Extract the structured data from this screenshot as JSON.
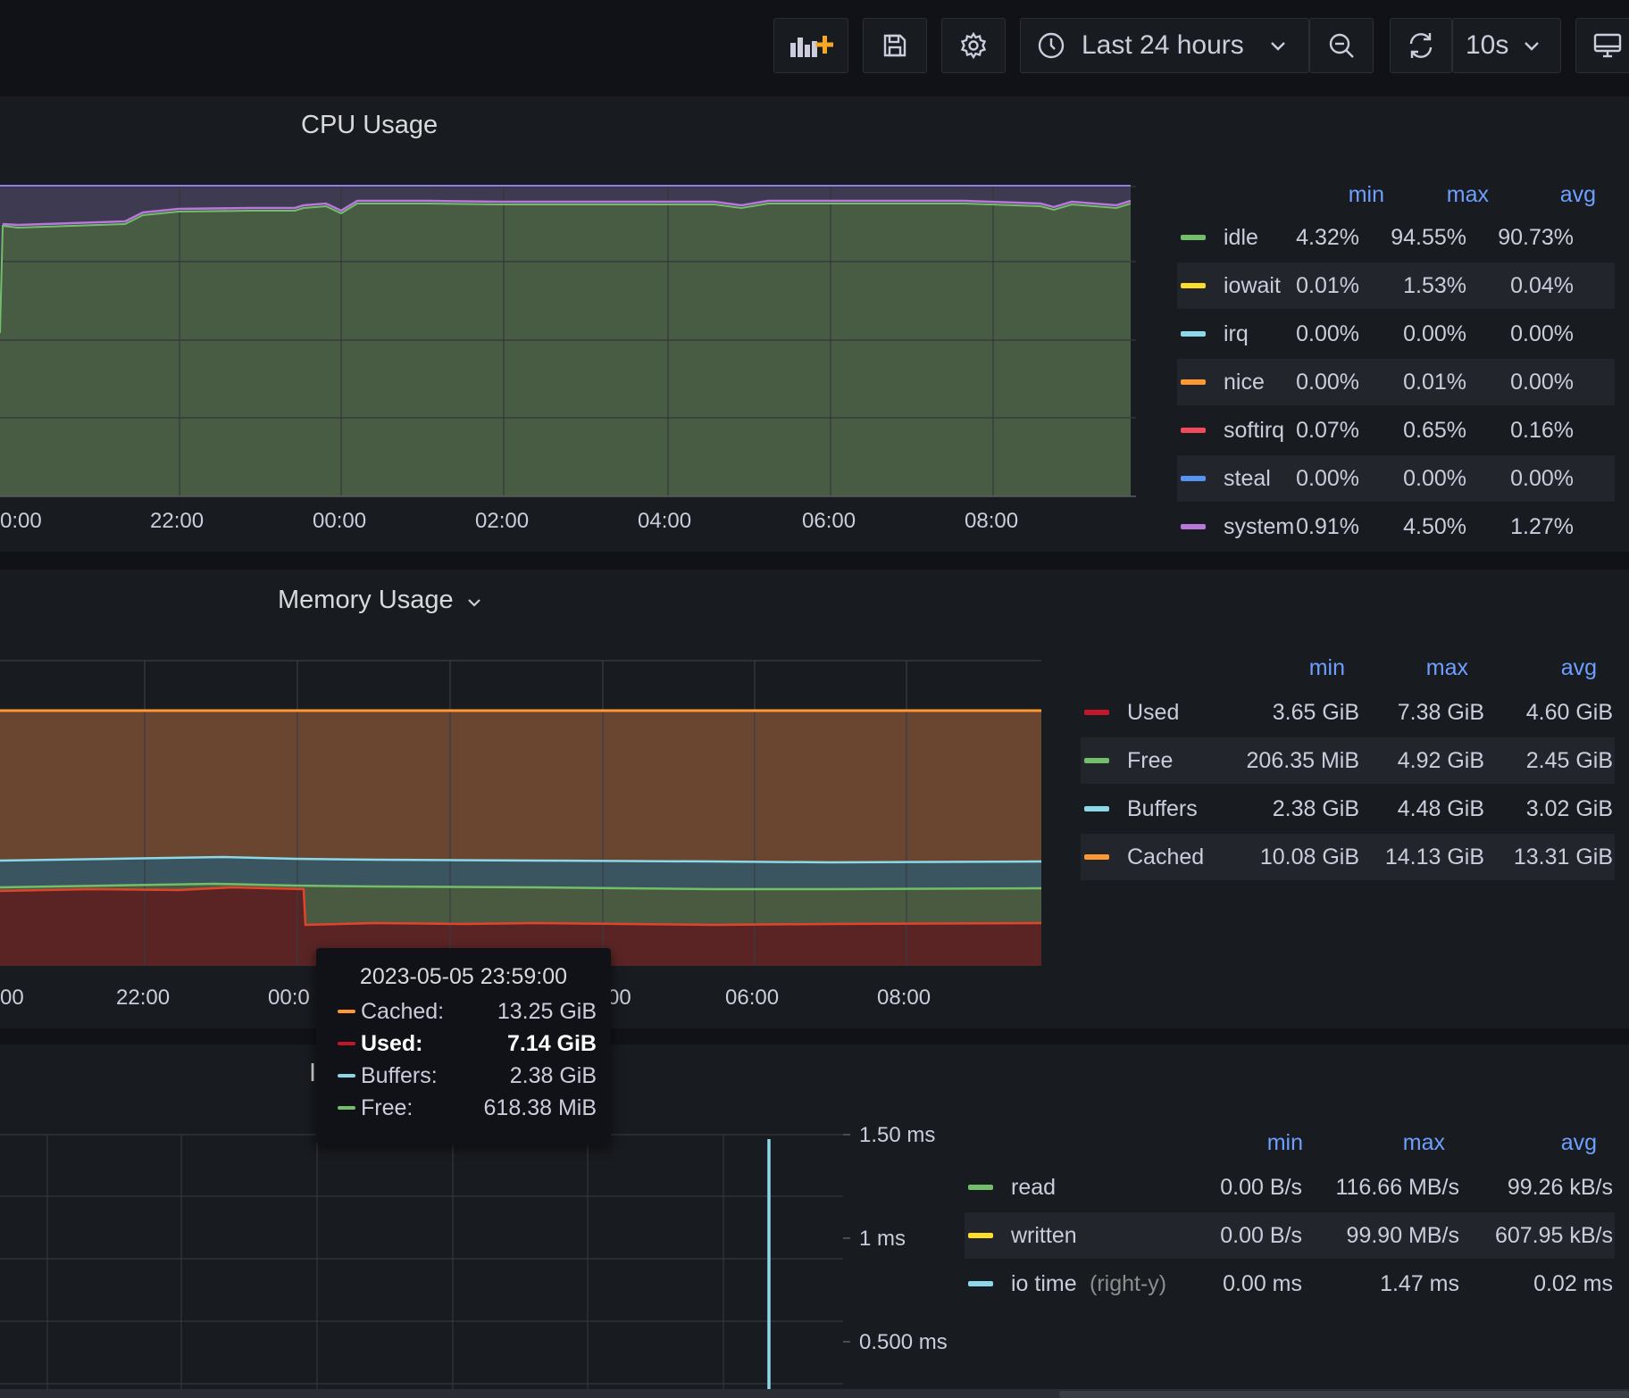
{
  "toolbar": {
    "add_panel_icon": "add-panel-icon",
    "time_range": "Last 24 hours",
    "refresh_interval": "10s"
  },
  "cpu_panel": {
    "title": "CPU Usage",
    "legend_headers": [
      "min",
      "max",
      "avg"
    ],
    "legend": [
      {
        "name": "idle",
        "color": "#73bf69",
        "min": "4.32%",
        "max": "94.55%",
        "avg": "90.73%"
      },
      {
        "name": "iowait",
        "color": "#fade2a",
        "min": "0.01%",
        "max": "1.53%",
        "avg": "0.04%"
      },
      {
        "name": "irq",
        "color": "#8ab8ff",
        "min": "0.00%",
        "max": "0.00%",
        "avg": "0.00%"
      },
      {
        "name": "nice",
        "color": "#ff9830",
        "min": "0.00%",
        "max": "0.01%",
        "avg": "0.00%"
      },
      {
        "name": "softirq",
        "color": "#f2495c",
        "min": "0.07%",
        "max": "0.65%",
        "avg": "0.16%"
      },
      {
        "name": "steal",
        "color": "#5794f2",
        "min": "0.00%",
        "max": "0.00%",
        "avg": "0.00%"
      },
      {
        "name": "system",
        "color": "#b877d9",
        "min": "0.91%",
        "max": "4.50%",
        "avg": "1.27%"
      }
    ],
    "x_ticks": [
      "0:00",
      "22:00",
      "00:00",
      "02:00",
      "04:00",
      "06:00",
      "08:00"
    ]
  },
  "memory_panel": {
    "title": "Memory Usage",
    "legend_headers": [
      "min",
      "max",
      "avg"
    ],
    "legend": [
      {
        "name": "Used",
        "color": "#c4162a",
        "min": "3.65 GiB",
        "max": "7.38 GiB",
        "avg": "4.60 GiB"
      },
      {
        "name": "Free",
        "color": "#73bf69",
        "min": "206.35 MiB",
        "max": "4.92 GiB",
        "avg": "2.45 GiB"
      },
      {
        "name": "Buffers",
        "color": "#8ab8ff",
        "min": "2.38 GiB",
        "max": "4.48 GiB",
        "avg": "3.02 GiB"
      },
      {
        "name": "Cached",
        "color": "#ff9830",
        "min": "10.08 GiB",
        "max": "14.13 GiB",
        "avg": "13.31 GiB"
      }
    ],
    "x_ticks": [
      "00",
      "22:00",
      "00:0",
      "00",
      "06:00",
      "08:00"
    ]
  },
  "tooltip": {
    "timestamp": "2023-05-05 23:59:00",
    "rows": [
      {
        "label": "Cached:",
        "value": "13.25 GiB",
        "color": "#ff9830",
        "bold": false
      },
      {
        "label": "Used:",
        "value": "7.14 GiB",
        "color": "#c4162a",
        "bold": true
      },
      {
        "label": "Buffers:",
        "value": "2.38 GiB",
        "color": "#8ab8ff",
        "bold": false
      },
      {
        "label": "Free:",
        "value": "618.38 MiB",
        "color": "#73bf69",
        "bold": false
      }
    ]
  },
  "disk_panel": {
    "title_fragment": "I",
    "legend_headers": [
      "min",
      "max",
      "avg"
    ],
    "legend": [
      {
        "name": "read",
        "suffix": "",
        "color": "#73bf69",
        "min": "0.00 B/s",
        "max": "116.66 MB/s",
        "avg": "99.26 kB/s"
      },
      {
        "name": "written",
        "suffix": "",
        "color": "#fade2a",
        "min": "0.00 B/s",
        "max": "99.90 MB/s",
        "avg": "607.95 kB/s"
      },
      {
        "name": "io time",
        "suffix": "(right-y)",
        "color": "#8ab8ff",
        "min": "0.00 ms",
        "max": "1.47 ms",
        "avg": "0.02 ms"
      }
    ],
    "right_y_ticks": [
      "1.50 ms",
      "1 ms",
      "0.500 ms"
    ]
  }
}
